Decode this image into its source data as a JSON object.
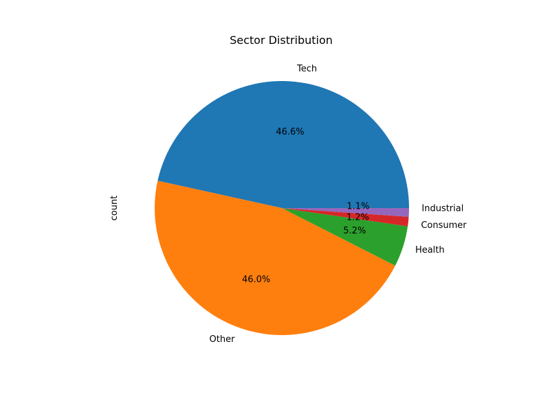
{
  "chart_data": {
    "type": "pie",
    "title": "Sector Distribution",
    "ylabel": "count",
    "xlabel": "",
    "categories": [
      "Tech",
      "Other",
      "Health",
      "Consumer",
      "Industrial"
    ],
    "values": [
      46.6,
      46.0,
      5.2,
      1.2,
      1.1
    ],
    "percent_labels": [
      "46.6%",
      "46.0%",
      "5.2%",
      "1.2%",
      "1.1%"
    ],
    "colors": [
      "#1f77b4",
      "#ff7f0e",
      "#2ca02c",
      "#d62728",
      "#9467bd"
    ],
    "start_angle_deg": 0,
    "direction": "counterclockwise",
    "legend": "none",
    "grid": false
  }
}
